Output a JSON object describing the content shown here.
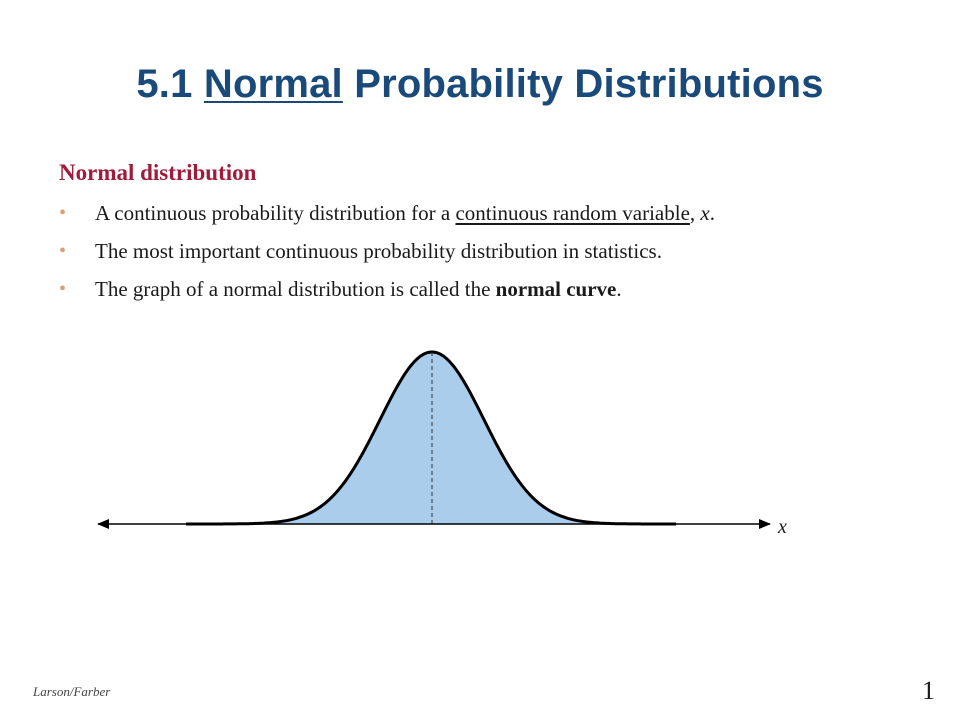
{
  "slide": {
    "title_prefix": "5.1 ",
    "title_underlined": "Normal",
    "title_suffix": " Probability Distributions",
    "heading": "Normal distribution",
    "bullets": [
      {
        "before": "A continuous probability distribution for a ",
        "underlined": "continuous random variable",
        "after_prefix": ", ",
        "italic": "x",
        "after": "."
      },
      {
        "text": "The most important continuous probability distribution in statistics."
      },
      {
        "before": "The graph of a normal distribution is called the ",
        "bold": "normal curve",
        "after": "."
      }
    ],
    "axis_label": "x",
    "footer": "Larson/Farber",
    "page_number": "1"
  },
  "colors": {
    "title": "#1a4a7a",
    "heading": "#a01c3c",
    "bullet": "#d4a27a",
    "curve_fill": "#abcdec",
    "curve_stroke": "#000000"
  }
}
